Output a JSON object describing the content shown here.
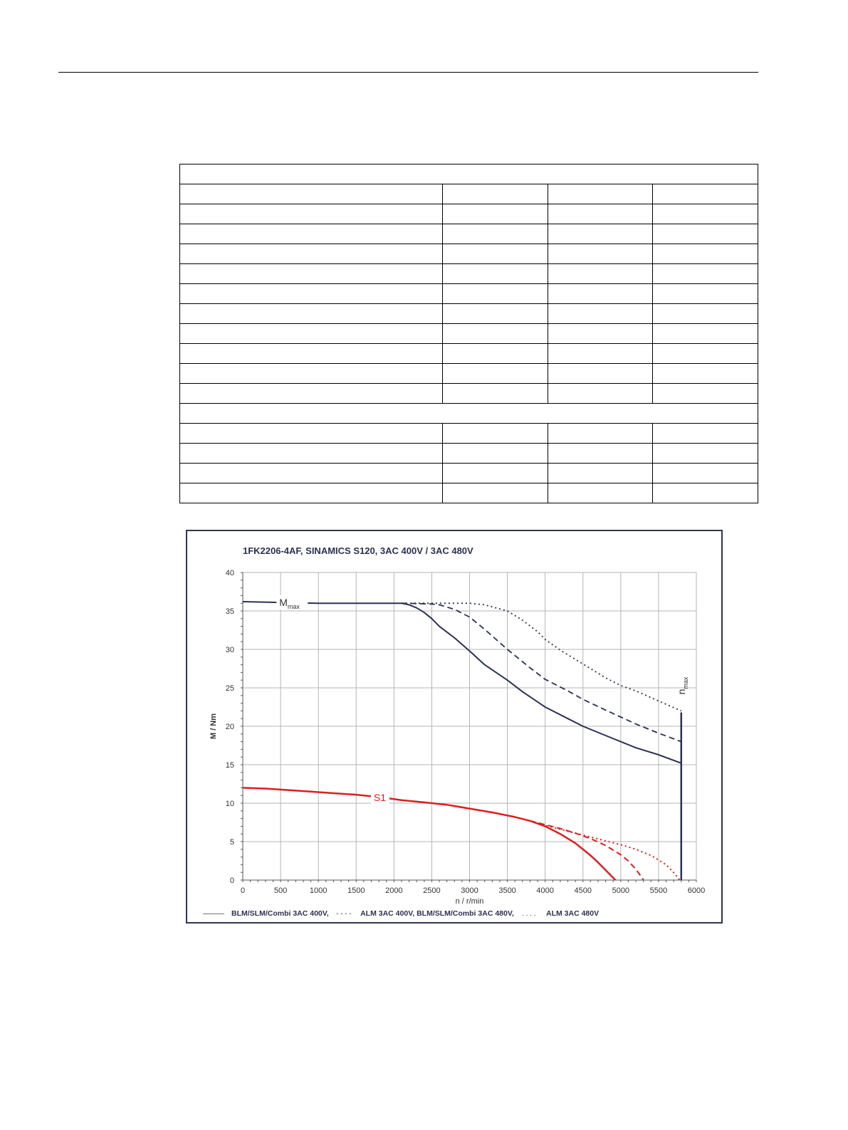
{
  "table": {
    "rows": [
      {
        "kind": "full"
      },
      {
        "kind": "split",
        "cells": [
          "",
          "",
          "",
          ""
        ]
      },
      {
        "kind": "split",
        "cells": [
          "",
          "",
          "",
          ""
        ]
      },
      {
        "kind": "split",
        "cells": [
          "",
          "",
          "",
          ""
        ]
      },
      {
        "kind": "split",
        "cells": [
          "",
          "",
          "",
          ""
        ]
      },
      {
        "kind": "split",
        "cells": [
          "",
          "",
          "",
          ""
        ]
      },
      {
        "kind": "split",
        "cells": [
          "",
          "",
          "",
          ""
        ]
      },
      {
        "kind": "split",
        "cells": [
          "",
          "",
          "",
          ""
        ]
      },
      {
        "kind": "split",
        "cells": [
          "",
          "",
          "",
          ""
        ]
      },
      {
        "kind": "split",
        "cells": [
          "",
          "",
          "",
          ""
        ]
      },
      {
        "kind": "split",
        "cells": [
          "",
          "",
          "",
          ""
        ]
      },
      {
        "kind": "split",
        "cells": [
          "",
          "",
          "",
          ""
        ]
      },
      {
        "kind": "full"
      },
      {
        "kind": "split",
        "cells": [
          "",
          "",
          "",
          ""
        ]
      },
      {
        "kind": "split",
        "cells": [
          "",
          "",
          "",
          ""
        ]
      },
      {
        "kind": "split",
        "cells": [
          "",
          "",
          "",
          ""
        ]
      },
      {
        "kind": "split",
        "cells": [
          "",
          "",
          "",
          ""
        ]
      }
    ]
  },
  "chart_data": {
    "type": "line",
    "title": "1FK2206-4AF,  SINAMICS S120,  3AC 400V / 3AC 480V",
    "xlabel": "n / r/min",
    "ylabel": "M / Nm",
    "xlim": [
      0,
      6000
    ],
    "ylim": [
      0,
      40
    ],
    "x_ticks": [
      0,
      500,
      1000,
      1500,
      2000,
      2500,
      3000,
      3500,
      4000,
      4500,
      5000,
      5500,
      6000
    ],
    "y_ticks": [
      0,
      5,
      10,
      15,
      20,
      25,
      30,
      35,
      40
    ],
    "grid": true,
    "legend": {
      "placement": "bottom",
      "entries": [
        {
          "symbol": "———",
          "label": "BLM/SLM/Combi 3AC 400V,",
          "style": "solid"
        },
        {
          "symbol": "- - - -",
          "label": "ALM 3AC 400V, BLM/SLM/Combi 3AC 480V,",
          "style": "dashed"
        },
        {
          "symbol": ". . . .",
          "label": "ALM 3AC 480V",
          "style": "dotted"
        }
      ]
    },
    "annotations": {
      "mmax": {
        "main": "M",
        "sub": "max"
      },
      "nmax": {
        "main": "n",
        "sub": "max"
      },
      "s1": "S1"
    },
    "nmax_value": 5800,
    "colors": {
      "mmax": "#2b3152",
      "s1": "#dd1e1e",
      "grid": "#b5b5b5",
      "axis": "#555555",
      "frame": "#2e3556"
    },
    "series": [
      {
        "group": "mmax",
        "style": "solid",
        "x": [
          0,
          500,
          1000,
          1500,
          2000,
          2100,
          2200,
          2300,
          2400,
          2500,
          2600,
          2800,
          3000,
          3200,
          3500,
          3700,
          4000,
          4300,
          4500,
          4800,
          5000,
          5200,
          5500,
          5800
        ],
        "y": [
          36.2,
          36.1,
          36.0,
          36.0,
          36.0,
          36.0,
          35.8,
          35.4,
          34.8,
          34.0,
          33.0,
          31.5,
          29.8,
          28.0,
          26.0,
          24.5,
          22.5,
          21.0,
          20.0,
          18.8,
          18.0,
          17.2,
          16.3,
          15.2
        ]
      },
      {
        "group": "mmax",
        "style": "dashed",
        "x": [
          2100,
          2500,
          2600,
          2800,
          3000,
          3200,
          3500,
          3800,
          4000,
          4300,
          4500,
          4800,
          5000,
          5200,
          5500,
          5800
        ],
        "y": [
          36.0,
          35.9,
          35.8,
          35.2,
          34.2,
          32.6,
          30.0,
          27.6,
          26.1,
          24.6,
          23.5,
          22.1,
          21.2,
          20.3,
          19.1,
          18.0
        ]
      },
      {
        "group": "mmax",
        "style": "dotted",
        "x": [
          2100,
          2500,
          3000,
          3200,
          3500,
          3700,
          3900,
          4000,
          4200,
          4500,
          4800,
          5000,
          5200,
          5500,
          5800
        ],
        "y": [
          36.0,
          36.0,
          36.0,
          35.8,
          35.0,
          33.8,
          32.3,
          31.3,
          29.9,
          28.1,
          26.3,
          25.3,
          24.6,
          23.3,
          22.0
        ]
      },
      {
        "group": "s1",
        "style": "solid",
        "x": [
          0,
          300,
          600,
          900,
          1200,
          1500,
          1800,
          2100,
          2400,
          2700,
          3000,
          3300,
          3600,
          3800,
          4000,
          4200,
          4400,
          4600,
          4700,
          4800,
          4880,
          4930
        ],
        "y": [
          12.0,
          11.9,
          11.7,
          11.5,
          11.3,
          11.1,
          10.8,
          10.4,
          10.1,
          9.8,
          9.3,
          8.8,
          8.2,
          7.7,
          7.0,
          6.0,
          4.8,
          3.2,
          2.3,
          1.3,
          0.5,
          0.0
        ]
      },
      {
        "group": "s1",
        "style": "dashed",
        "x": [
          3800,
          4000,
          4200,
          4400,
          4600,
          4800,
          5000,
          5100,
          5200,
          5260,
          5300
        ],
        "y": [
          7.7,
          7.2,
          6.7,
          6.1,
          5.4,
          4.5,
          3.3,
          2.5,
          1.4,
          0.6,
          0.0
        ]
      },
      {
        "group": "s1",
        "style": "dotted",
        "x": [
          3800,
          4000,
          4200,
          4400,
          4600,
          4800,
          5000,
          5200,
          5400,
          5600,
          5700,
          5780
        ],
        "y": [
          7.7,
          7.1,
          6.6,
          6.1,
          5.6,
          5.1,
          4.6,
          4.0,
          3.2,
          2.0,
          1.0,
          0.0
        ]
      }
    ]
  }
}
